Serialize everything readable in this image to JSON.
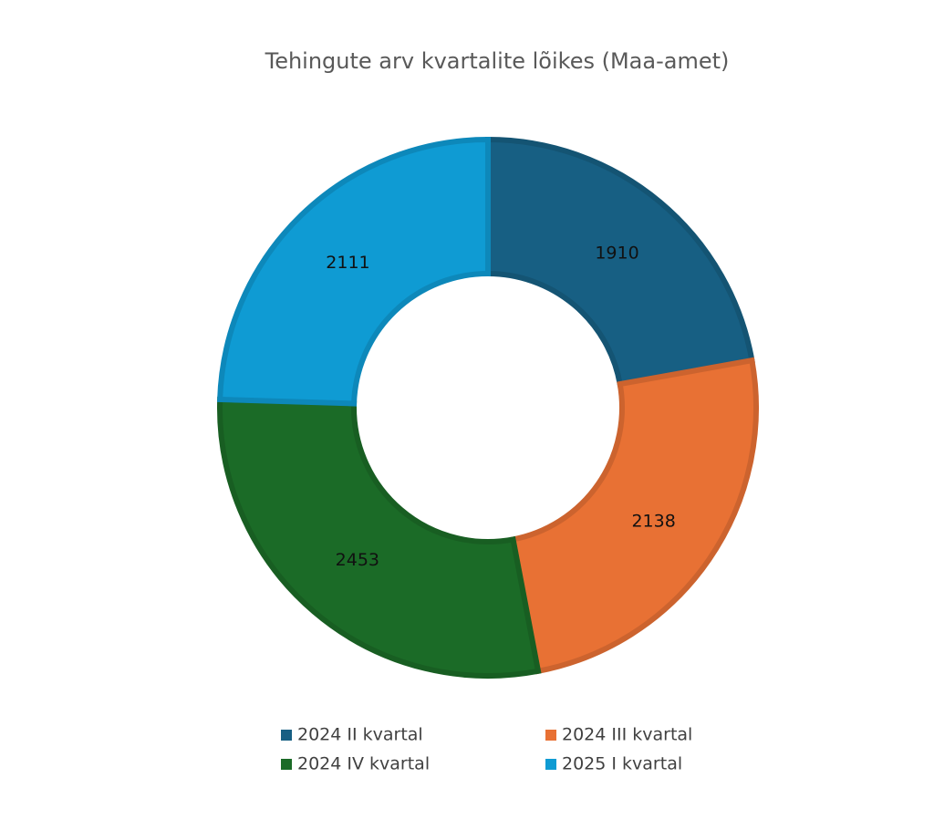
{
  "chart_data": {
    "type": "donut",
    "title": "Tehingute arv kvartalite lõikes (Maa-amet)",
    "categories": [
      "2024 II kvartal",
      "2024 III kvartal",
      "2024 IV kvartal",
      "2025 I kvartal"
    ],
    "values": [
      1910,
      2138,
      2453,
      2111
    ],
    "colors": [
      "#175f83",
      "#e87134",
      "#1b6b27",
      "#0f9bd3"
    ]
  }
}
